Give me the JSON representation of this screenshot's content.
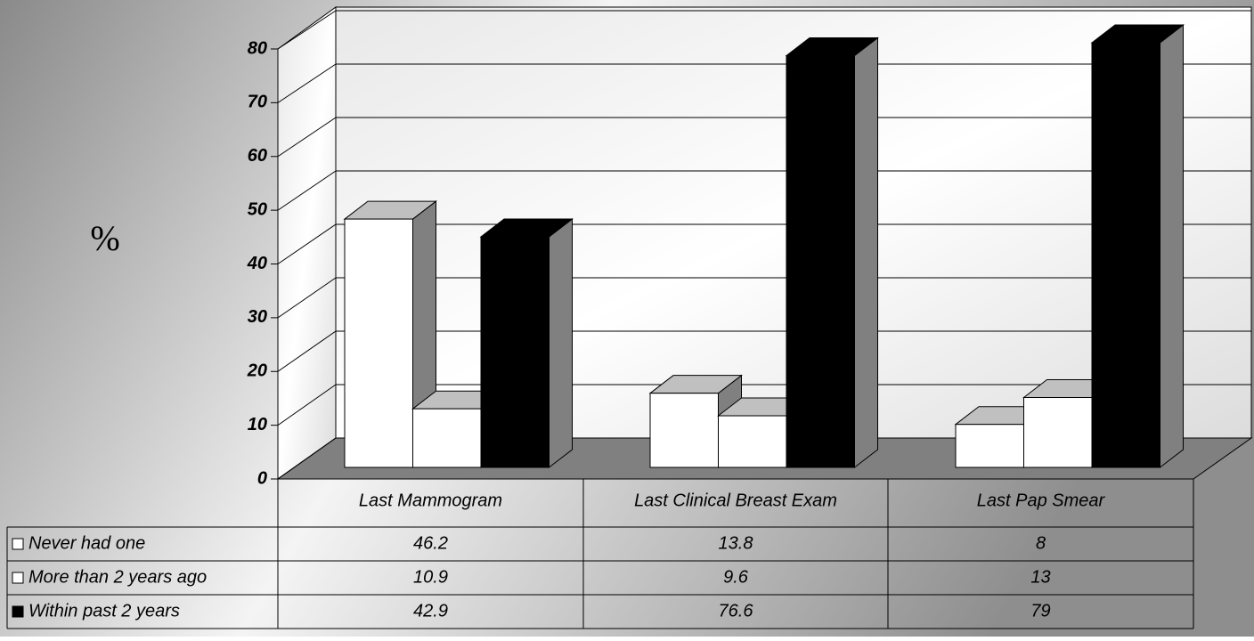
{
  "chart_data": {
    "type": "bar3d",
    "y_label": "%",
    "categories": [
      "Last Mammogram",
      "Last Clinical Breast Exam",
      "Last Pap Smear"
    ],
    "series": [
      {
        "name": "Never had one",
        "color": "#ffffff",
        "values": [
          46.2,
          13.8,
          8
        ]
      },
      {
        "name": "More than 2 years ago",
        "color": "#ffffff",
        "values": [
          10.9,
          9.6,
          13
        ]
      },
      {
        "name": "Within past 2 years",
        "color": "#000000",
        "values": [
          42.9,
          76.6,
          79
        ]
      }
    ],
    "ylim": [
      0,
      80
    ],
    "yticks": [
      0,
      10,
      20,
      30,
      40,
      50,
      60,
      70,
      80
    ],
    "grid": true
  }
}
